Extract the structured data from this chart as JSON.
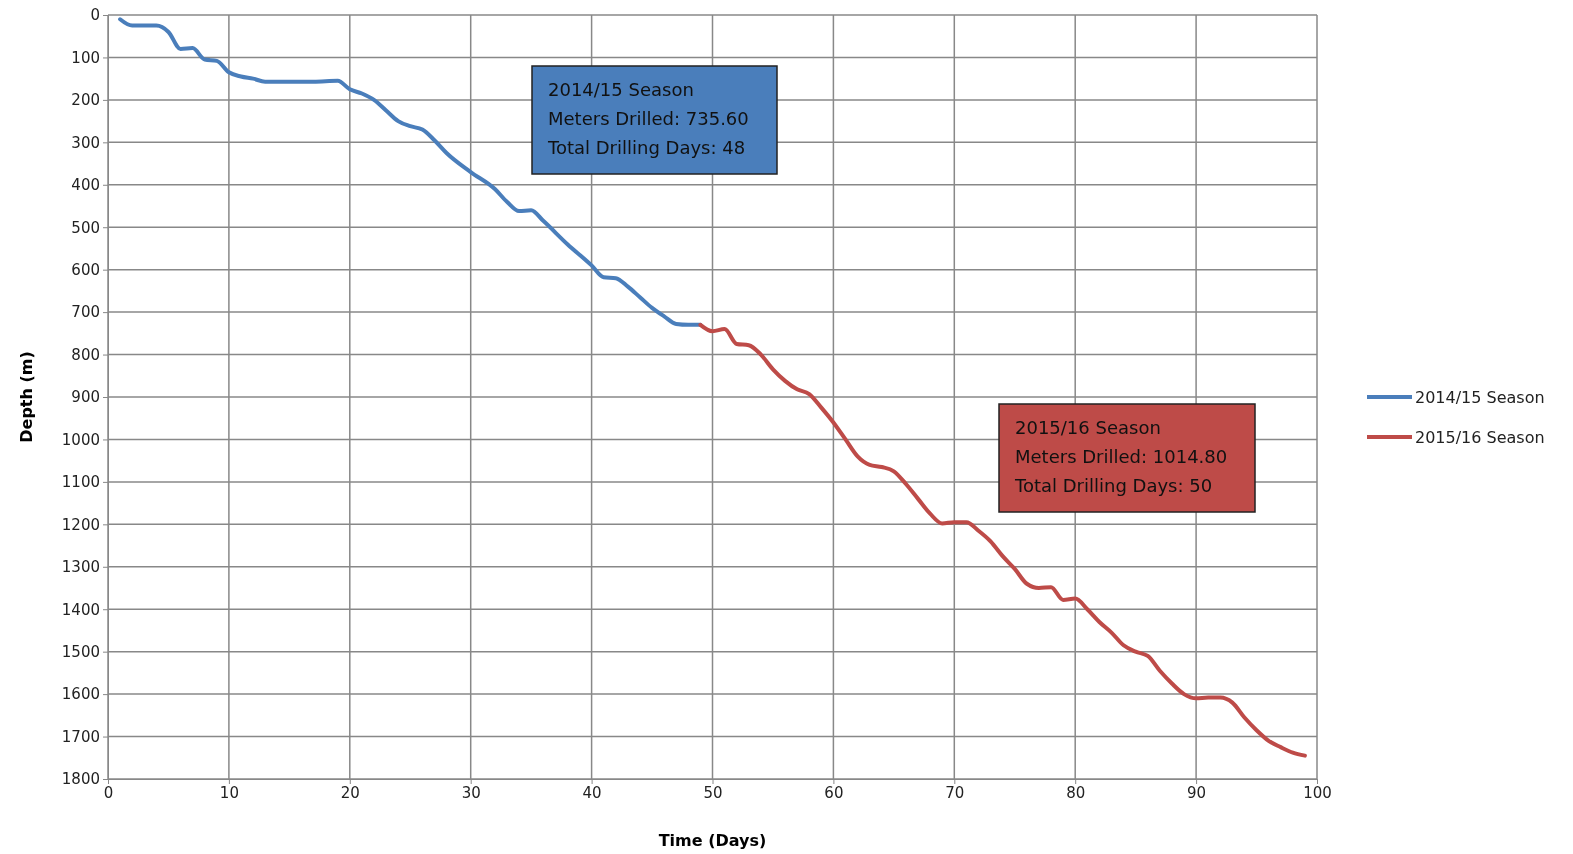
{
  "chart_data": {
    "type": "line",
    "xlabel": "Time (Days)",
    "ylabel": "Depth (m)",
    "xlim": [
      0,
      100
    ],
    "xticks": [
      0,
      10,
      20,
      30,
      40,
      50,
      60,
      70,
      80,
      90,
      100
    ],
    "ylim": [
      1800,
      0
    ],
    "yticks": [
      0,
      100,
      200,
      300,
      400,
      500,
      600,
      700,
      800,
      900,
      1000,
      1100,
      1200,
      1300,
      1400,
      1500,
      1600,
      1700,
      1800
    ],
    "grid": true,
    "legend": "right",
    "marker": "none",
    "line_style": "solid",
    "series": [
      {
        "name": "2014/15 Season",
        "color": "#4a7ebb",
        "x": [
          1,
          2,
          3,
          4,
          5,
          6,
          7,
          8,
          9,
          10,
          11,
          12,
          13,
          15,
          17,
          19,
          20,
          21,
          22,
          23,
          24,
          25,
          26,
          27,
          28,
          30,
          32,
          33,
          34,
          35,
          36,
          38,
          40,
          41,
          42,
          43,
          44,
          45,
          46,
          47,
          48,
          49
        ],
        "values": [
          10,
          25,
          25,
          25,
          40,
          80,
          78,
          105,
          108,
          135,
          145,
          150,
          157,
          157,
          157,
          155,
          175,
          185,
          200,
          225,
          250,
          262,
          270,
          295,
          325,
          370,
          410,
          440,
          462,
          460,
          485,
          540,
          590,
          618,
          620,
          640,
          665,
          690,
          710,
          728,
          730,
          730
        ]
      },
      {
        "name": "2015/16 Season",
        "color": "#be4b48",
        "x": [
          49,
          50,
          51,
          52,
          53,
          54,
          55,
          56,
          57,
          58,
          59,
          60,
          61,
          62,
          63,
          64,
          65,
          66,
          67,
          68,
          69,
          70,
          71,
          72,
          73,
          74,
          75,
          76,
          77,
          78,
          79,
          80,
          81,
          82,
          83,
          84,
          85,
          86,
          87,
          88,
          89,
          90,
          91,
          92,
          93,
          94,
          95,
          96,
          97,
          98,
          99
        ],
        "values": [
          730,
          745,
          740,
          775,
          778,
          800,
          835,
          862,
          882,
          893,
          925,
          960,
          1000,
          1040,
          1060,
          1065,
          1075,
          1105,
          1140,
          1175,
          1198,
          1195,
          1195,
          1215,
          1240,
          1275,
          1305,
          1340,
          1350,
          1348,
          1378,
          1375,
          1400,
          1430,
          1455,
          1485,
          1500,
          1510,
          1545,
          1575,
          1600,
          1610,
          1608,
          1608,
          1620,
          1655,
          1685,
          1710,
          1725,
          1738,
          1745
        ]
      }
    ],
    "annotations": [
      "2014/15 Season\nMeters Drilled: 735.60\nTotal Drilling Days: 48",
      "2015/16 Season\nMeters Drilled: 1014.80\nTotal Drilling Days: 50"
    ]
  }
}
